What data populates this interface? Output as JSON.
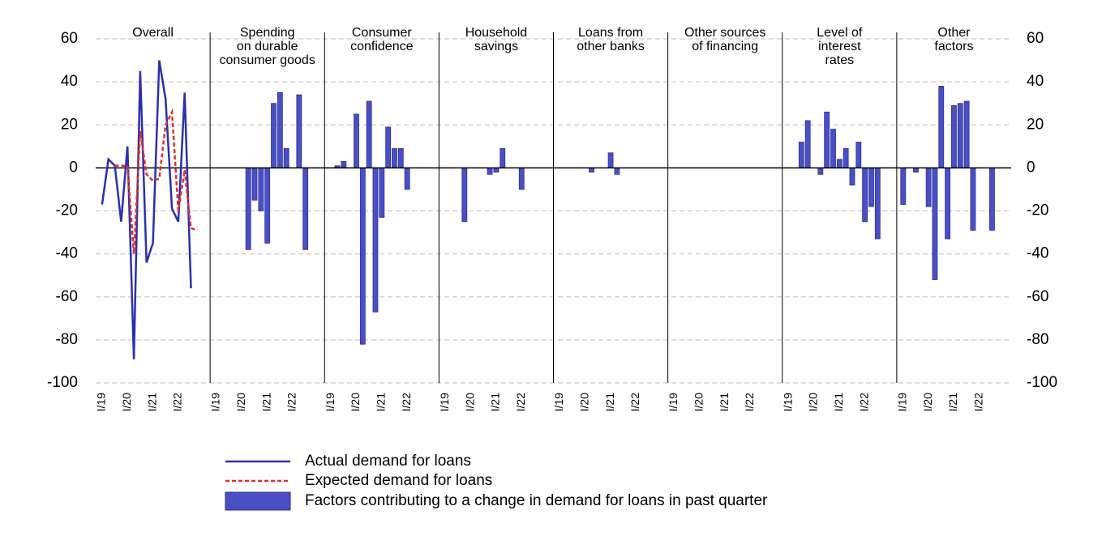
{
  "chart_data": {
    "type": "bar",
    "categories": [
      "I/19",
      null,
      null,
      null,
      "I/20",
      null,
      null,
      null,
      "I/21",
      null,
      null,
      null,
      "I/22",
      null,
      null,
      null,
      null
    ],
    "ylim": [
      -100,
      60
    ],
    "yticks": [
      -100,
      -80,
      -60,
      -40,
      -20,
      0,
      20,
      40,
      60
    ],
    "grid": true,
    "bar_name": "Factors contributing to a change in demand for loans in past quarter",
    "bar_color": "#4a4fc4",
    "panels": [
      {
        "title": [
          "Overall"
        ],
        "series": [
          {
            "name": "Actual demand for loans",
            "color": "#2a2fb0",
            "dash": false,
            "values": [
              -17,
              4,
              1,
              -25,
              10,
              -89,
              45,
              -44,
              -35,
              50,
              32,
              -19,
              -25,
              35,
              -56,
              null,
              null
            ]
          },
          {
            "name": "Expected demand for loans",
            "color": "#e0302a",
            "dash": true,
            "values": [
              null,
              null,
              1,
              1,
              1,
              -40,
              17,
              -3,
              -6,
              -5,
              20,
              26,
              -20,
              -1,
              -28,
              -29,
              null
            ]
          }
        ]
      },
      {
        "title": [
          "Spending",
          "on durable",
          "consumer goods"
        ],
        "values": [
          0,
          0,
          0,
          0,
          0,
          -38,
          -15,
          -20,
          -35,
          30,
          35,
          9,
          0,
          34,
          -38,
          0,
          0
        ]
      },
      {
        "title": [
          "Consumer",
          "confidence"
        ],
        "values": [
          0,
          1,
          3,
          0,
          25,
          -82,
          31,
          -67,
          -23,
          19,
          9,
          9,
          -10,
          0,
          0,
          0,
          0
        ]
      },
      {
        "title": [
          "Household",
          "savings"
        ],
        "values": [
          0,
          0,
          0,
          -25,
          0,
          0,
          0,
          -3,
          -2,
          9,
          0,
          0,
          -10,
          0,
          0,
          0,
          0
        ]
      },
      {
        "title": [
          "Loans from",
          "other banks"
        ],
        "values": [
          0,
          0,
          0,
          0,
          0,
          -2,
          0,
          0,
          7,
          -3,
          0,
          0,
          0,
          0,
          0,
          0,
          0
        ]
      },
      {
        "title": [
          "Other sources",
          "of financing"
        ],
        "values": [
          0,
          0,
          0,
          0,
          0,
          0,
          0,
          0,
          0,
          0,
          0,
          0,
          0,
          0,
          0,
          0,
          0
        ]
      },
      {
        "title": [
          "Level of",
          "interest",
          "rates"
        ],
        "values": [
          0,
          0,
          12,
          22,
          0,
          -3,
          26,
          18,
          4,
          9,
          -8,
          12,
          -25,
          -18,
          -33,
          0,
          0
        ]
      },
      {
        "title": [
          "Other",
          "factors"
        ],
        "values": [
          -17,
          0,
          -2,
          0,
          -18,
          -52,
          38,
          -33,
          29,
          30,
          31,
          -29,
          0,
          0,
          -29,
          0,
          0
        ]
      }
    ]
  }
}
